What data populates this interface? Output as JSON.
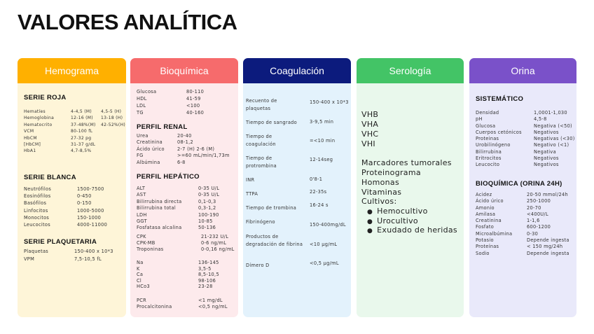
{
  "title": "VALORES ANALÍTICA",
  "colors": {
    "hemograma": "#FFB000",
    "bioquimica": "#F66B6C",
    "coagulacion": "#0C1B7D",
    "serologia": "#43C466",
    "orina": "#7A51C9"
  },
  "hemograma": {
    "header": "Hemograma",
    "serie_roja": {
      "title": "SERIE ROJA",
      "rows": [
        [
          "Hematíes",
          "4-4,5 (M)",
          "4,5-5 (H)"
        ],
        [
          "Hemoglobina",
          "12-16 (M)",
          "13-18 (H)"
        ],
        [
          "Hematocrito",
          "37-48%(M)",
          "42-52%(H)"
        ],
        [
          "VCM",
          "80-100 fL"
        ],
        [
          "HbCM",
          "27-32 pg"
        ],
        [
          "[HbCM]",
          "31-37 g/dL"
        ],
        [
          "HbA1",
          "4,7-8,5%"
        ]
      ]
    },
    "serie_blanca": {
      "title": "SERIE BLANCA",
      "rows": [
        [
          "Neutrófilos",
          "1500-7500"
        ],
        [
          "Eosinófilos",
          "0-450"
        ],
        [
          "Basófilos",
          "0-150"
        ],
        [
          "Linfocitos",
          "1000-5000"
        ],
        [
          "Monocitos",
          "150-1000"
        ],
        [
          "Leucocitos",
          "4000-11000"
        ]
      ]
    },
    "serie_plaquetaria": {
      "title": "SERIE PLAQUETARIA",
      "rows": [
        [
          "Plaquetas",
          "150-400 x 10*3"
        ],
        [
          "VPM",
          "7,5-10,5 fL"
        ]
      ]
    }
  },
  "bioquimica": {
    "header": "Bioquímica",
    "general": {
      "rows": [
        [
          "Glucosa",
          "80-110"
        ],
        [
          "HDL",
          "41-59"
        ],
        [
          "LDL",
          "<100"
        ],
        [
          "TG",
          "40-160"
        ]
      ]
    },
    "perfil_renal": {
      "title": "PERFIL RENAL",
      "rows": [
        [
          "Urea",
          "20-40"
        ],
        [
          "Creatinina",
          "08-1,2"
        ],
        [
          "Ácido úrico",
          "2-7 (H)  2-6 (M)"
        ],
        [
          "FG",
          ">=60 mL/min/1,73m"
        ],
        [
          "Albúmina",
          "6-8"
        ]
      ]
    },
    "perfil_hepatico": {
      "title": "PERFIL HEPÁTICO",
      "rows": [
        [
          "ALT",
          "0-35 U/L"
        ],
        [
          "AST",
          "0-35 U/L"
        ],
        [
          "Bilirrubina directa",
          "0,1-0,3"
        ],
        [
          "Bilirrubina total",
          "0,3-1,2"
        ],
        [
          "LDH",
          "100-190"
        ],
        [
          "GGT",
          "10-85"
        ],
        [
          "Fosfatasa alcalina",
          "50-136"
        ]
      ]
    },
    "cardiacos": {
      "rows": [
        [
          "CPK",
          "21-232 U/L"
        ],
        [
          "CPK-MB",
          "0-6 ng/mL"
        ],
        [
          "Troponinas",
          "0-0,16 ng/mL"
        ]
      ]
    },
    "iones": {
      "rows": [
        [
          "Na",
          "136-145"
        ],
        [
          "K",
          "3,5-5"
        ],
        [
          "Ca",
          "8,5-10,5"
        ],
        [
          "Cl",
          "98-106"
        ],
        [
          "HCo3",
          "23-28"
        ]
      ]
    },
    "inflamatorios": {
      "rows": [
        [
          "PCR",
          "<1 mg/dL"
        ],
        [
          "Procalcitonina",
          "<0,5 ng/mL"
        ]
      ]
    }
  },
  "coagulacion": {
    "header": "Coagulación",
    "rows": [
      [
        "Recuento de plaquetas",
        "150-400 x 10*3"
      ],
      [
        "Tiempo de sangrado",
        "3-9,5 min"
      ],
      [
        "Tiempo de coagulación",
        "=<10 min"
      ],
      [
        "Tiempo de protrombina",
        "12-14seg"
      ],
      [
        "INR",
        "0'8-1"
      ],
      [
        "TTPA",
        "22-35s"
      ],
      [
        "Tiempo de trombina",
        "16-24 s"
      ],
      [
        "Fibrinógeno",
        "150-400mg/dL"
      ],
      [
        "Productos de degradación de fibrina",
        "<10 µg/mL"
      ],
      [
        "Dímero D",
        "<0,5 µg/mL"
      ]
    ]
  },
  "serologia": {
    "header": "Serología",
    "items": [
      "VHB",
      "VHA",
      "VHC",
      "VHI",
      "Marcadores tumorales",
      "Proteinograma",
      "Homonas",
      "Vitaminas",
      "Cultivos:"
    ],
    "bullets": [
      "Hemocultivo",
      "Urocultivo",
      "Exudado de heridas"
    ]
  },
  "orina": {
    "header": "Orina",
    "sistematico": {
      "title": "SISTEMÁTICO",
      "rows": [
        [
          "Densidad",
          "1,0001-1,030"
        ],
        [
          "pH",
          "4,5-8"
        ],
        [
          "Glucosa",
          "Negativa (<50)"
        ],
        [
          "Cuerpos cetónicos",
          "Negativos"
        ],
        [
          "Proteinas",
          "Negativas (<30)"
        ],
        [
          "Urobilinógeno",
          "Negativo (<1)"
        ],
        [
          "Bilirrubina",
          "Negativa"
        ],
        [
          "Eritrocitos",
          "Negativos"
        ],
        [
          "Leucocito",
          "Negativos"
        ]
      ]
    },
    "bioquimica_24h": {
      "title": "BIOQUÍMICA (ORINA 24H)",
      "rows": [
        [
          "Acidez",
          "20-50 mmol/24h"
        ],
        [
          "Ácido úrico",
          "250-1000"
        ],
        [
          "Amonio",
          "20-70"
        ],
        [
          "Amilasa",
          "<400U/L"
        ],
        [
          "Creatinina",
          "1-1,6"
        ],
        [
          "Fosfato",
          "600-1200"
        ],
        [
          "Microalbúmina",
          "0-30"
        ],
        [
          "Potasio",
          "Depende ingesta"
        ],
        [
          "Proteínas",
          "< 150 mg/24h"
        ],
        [
          "Sodio",
          "Depende ingesta"
        ]
      ]
    }
  }
}
